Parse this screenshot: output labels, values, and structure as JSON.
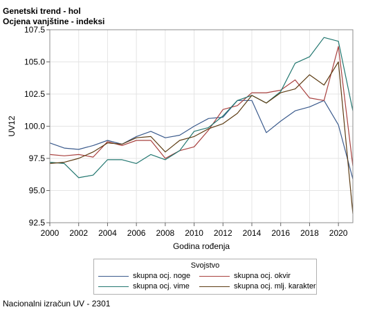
{
  "header": {
    "title": "Genetski trend - hol",
    "subtitle": "Ocjena vanjštine - indeksi"
  },
  "footer": {
    "note": "Nacionalni izračun UV - 2301"
  },
  "chart_data": {
    "type": "line",
    "title": "Genetski trend - hol",
    "subtitle": "Ocjena vanjštine - indeksi",
    "xlabel": "Godina rođenja",
    "ylabel": "UV12",
    "xlim": [
      2000,
      2021
    ],
    "ylim": [
      92.5,
      107.5
    ],
    "x_ticks": [
      "2000",
      "2002",
      "2004",
      "2006",
      "2008",
      "2010",
      "2012",
      "2014",
      "2016",
      "2018",
      "2020"
    ],
    "y_ticks": [
      "92.5",
      "95.0",
      "97.5",
      "100.0",
      "102.5",
      "105.0",
      "107.5"
    ],
    "grid": true,
    "legend": {
      "title": "Svojstvo",
      "placement": "bottom"
    },
    "x": [
      2000,
      2001,
      2002,
      2003,
      2004,
      2005,
      2006,
      2007,
      2008,
      2009,
      2010,
      2011,
      2012,
      2013,
      2014,
      2015,
      2016,
      2017,
      2018,
      2019,
      2020,
      2021
    ],
    "series": [
      {
        "name": "skupna ocj. noge",
        "color": "#3a5a8c",
        "values": [
          98.7,
          98.3,
          98.2,
          98.5,
          98.9,
          98.6,
          99.2,
          99.6,
          99.1,
          99.3,
          100.0,
          100.6,
          100.7,
          102.0,
          102.0,
          99.5,
          100.4,
          101.2,
          101.5,
          102.0,
          100.1,
          95.9
        ]
      },
      {
        "name": "skupna ocj. okvir",
        "color": "#a8403e",
        "values": [
          97.8,
          97.7,
          97.8,
          97.6,
          98.8,
          98.5,
          98.9,
          98.9,
          97.5,
          98.1,
          98.4,
          99.7,
          101.3,
          101.6,
          102.6,
          102.6,
          102.8,
          103.6,
          102.2,
          102.0,
          106.2,
          96.9
        ]
      },
      {
        "name": "skupna ocj. vime",
        "color": "#21766f",
        "values": [
          97.2,
          97.1,
          96.0,
          96.2,
          97.4,
          97.4,
          97.1,
          97.8,
          97.4,
          98.1,
          99.6,
          99.9,
          100.8,
          102.0,
          102.4,
          101.8,
          102.7,
          104.9,
          105.4,
          106.9,
          106.6,
          101.2
        ]
      },
      {
        "name": "skupna ocj. mlj. karakter",
        "color": "#5c3b12",
        "values": [
          97.1,
          97.2,
          97.5,
          98.0,
          98.7,
          98.6,
          99.1,
          99.2,
          98.0,
          98.9,
          99.2,
          99.8,
          100.2,
          101.0,
          102.4,
          101.8,
          102.6,
          102.9,
          104.0,
          103.2,
          105.0,
          93.2
        ]
      }
    ]
  }
}
